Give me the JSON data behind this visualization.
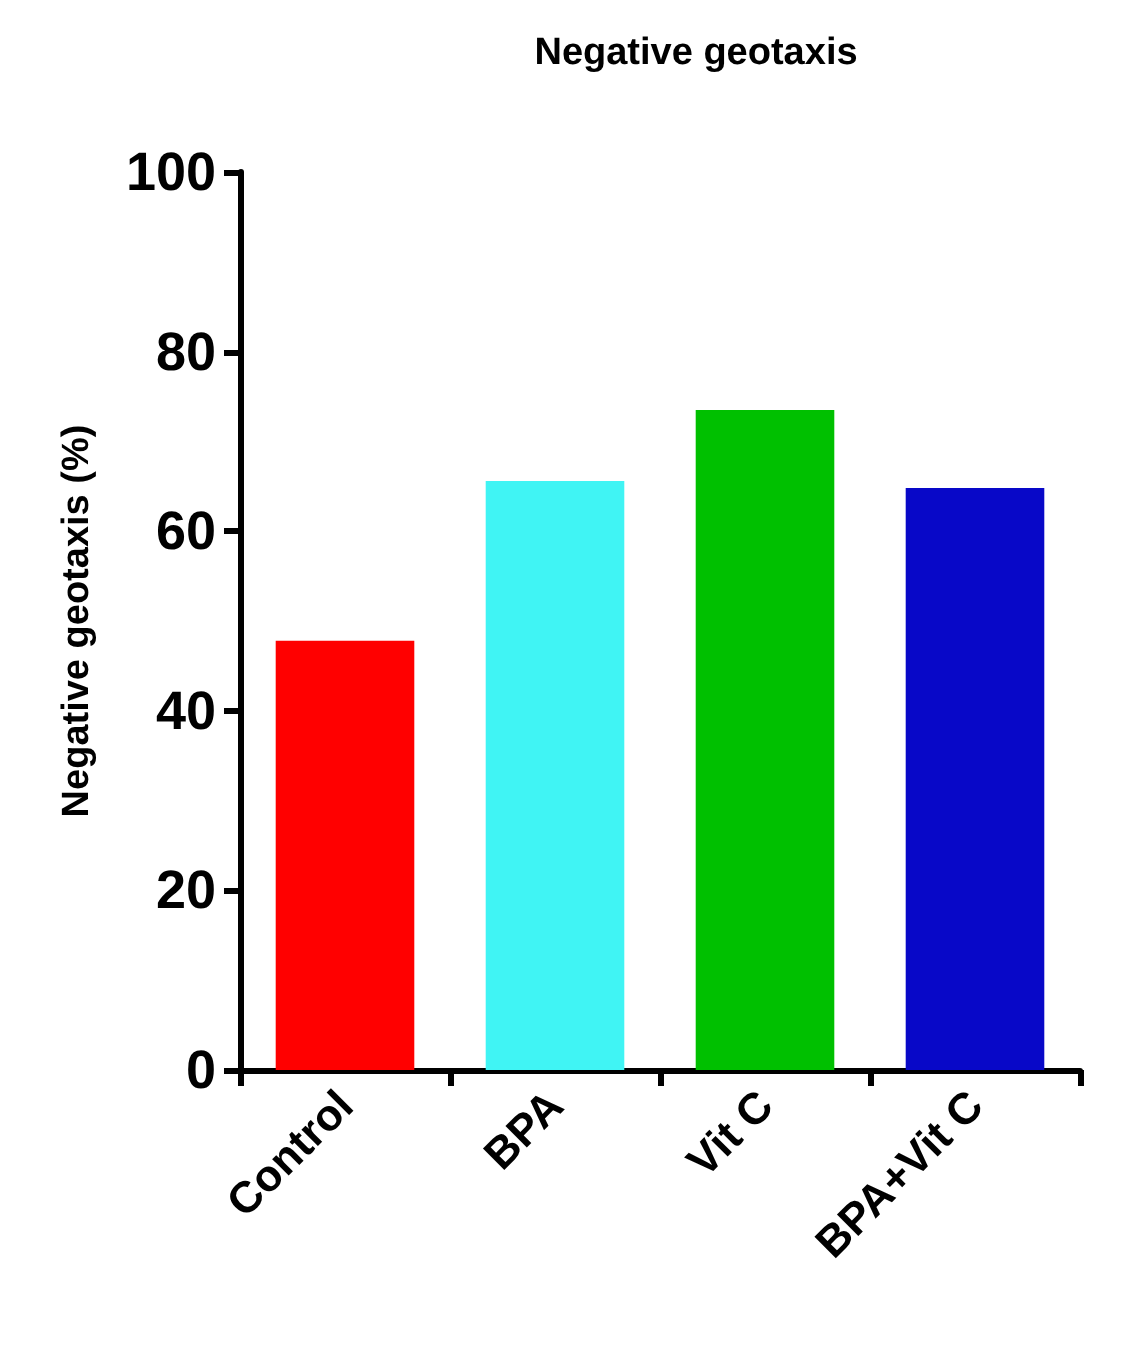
{
  "chart_data": {
    "type": "bar",
    "title": "Negative geotaxis",
    "ylabel": "Negative geotaxis (%)",
    "categories": [
      "Control",
      "BPA",
      "Vit C",
      "BPA+Vit C"
    ],
    "values": [
      47.8,
      65.6,
      73.5,
      64.8
    ],
    "colors": [
      "#ff0000",
      "#40f4f4",
      "#00c000",
      "#0808c8"
    ],
    "ylim": [
      0,
      100
    ],
    "yticks": [
      0,
      20,
      40,
      60,
      80,
      100
    ],
    "grid": false
  }
}
